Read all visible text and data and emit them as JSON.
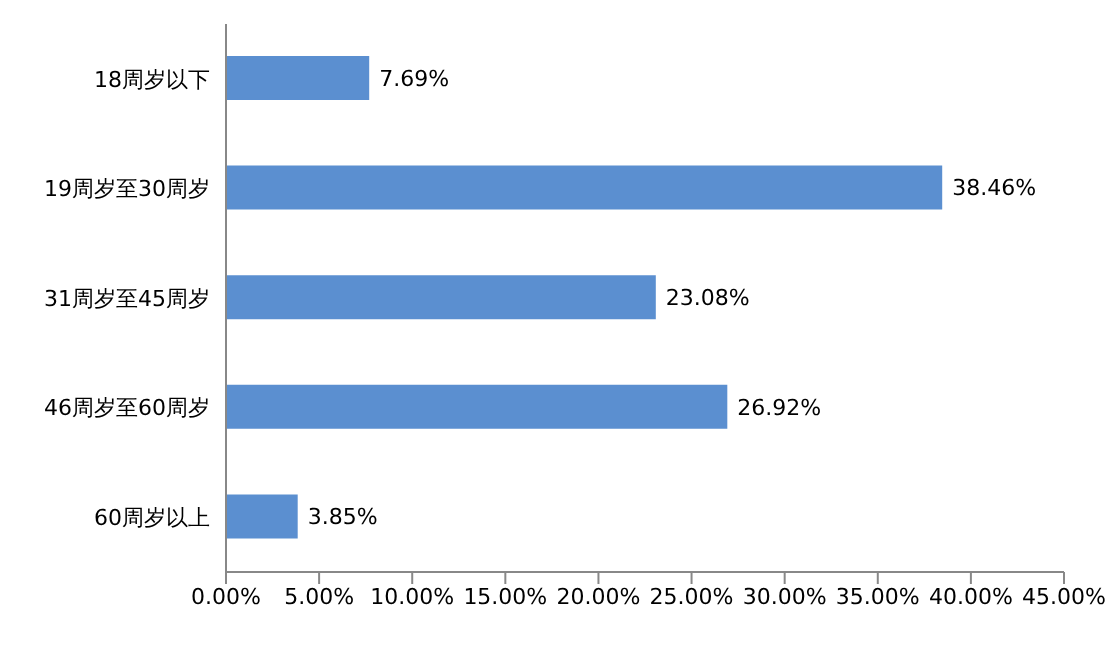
{
  "chart_data": {
    "type": "bar",
    "orientation": "horizontal",
    "categories": [
      "18周岁以下",
      "19周岁至30周岁",
      "31周岁至45周岁",
      "46周岁至60周岁",
      "60周岁以上"
    ],
    "values": [
      7.69,
      38.46,
      23.08,
      26.92,
      3.85
    ],
    "value_labels": [
      "7.69%",
      "38.46%",
      "23.08%",
      "26.92%",
      "3.85%"
    ],
    "color": "#5b8fd0",
    "xlim": [
      0,
      45
    ],
    "xticks": [
      {
        "value": 0,
        "label": "0.00%"
      },
      {
        "value": 5,
        "label": "5.00%"
      },
      {
        "value": 10,
        "label": "10.00%"
      },
      {
        "value": 15,
        "label": "15.00%"
      },
      {
        "value": 20,
        "label": "20.00%"
      },
      {
        "value": 25,
        "label": "25.00%"
      },
      {
        "value": 30,
        "label": "30.00%"
      },
      {
        "value": 35,
        "label": "35.00%"
      },
      {
        "value": 40,
        "label": "40.00%"
      },
      {
        "value": 45,
        "label": "45.00%"
      }
    ],
    "grid": false,
    "legend": false
  }
}
